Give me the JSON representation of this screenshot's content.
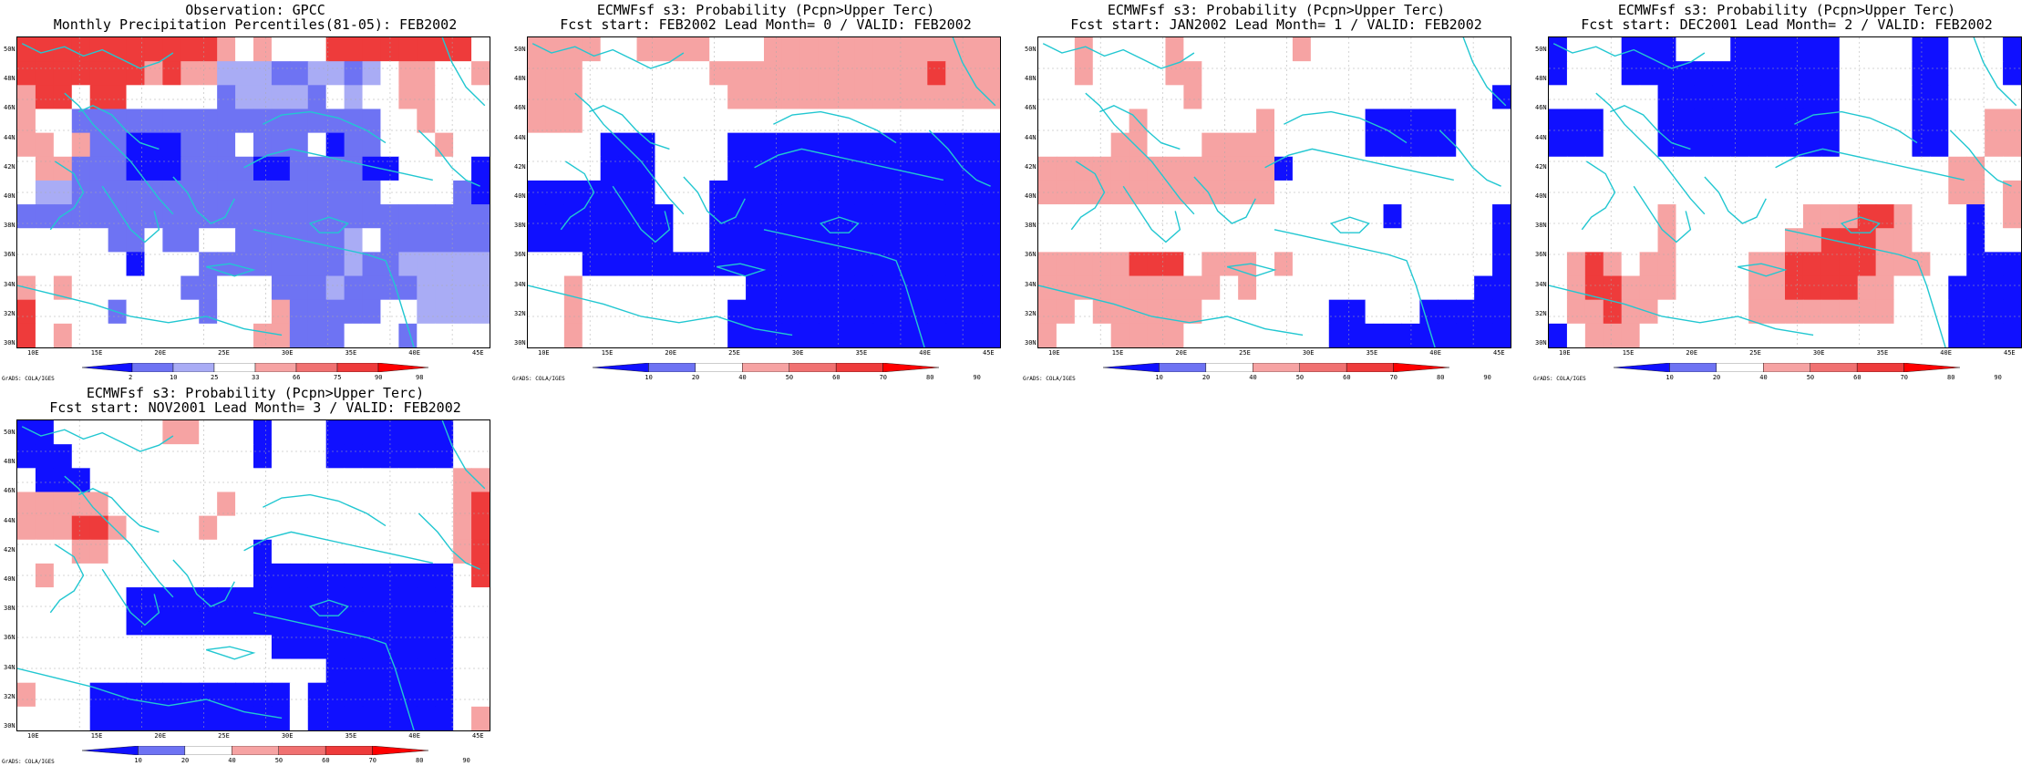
{
  "lat_labels": [
    "50N",
    "48N",
    "46N",
    "44N",
    "42N",
    "40N",
    "38N",
    "36N",
    "34N",
    "32N",
    "30N"
  ],
  "lon_labels": [
    "10E",
    "15E",
    "20E",
    "25E",
    "30E",
    "35E",
    "40E",
    "45E"
  ],
  "credit": "GrADS: COLA/IGES",
  "colors": {
    "blue_dark": "#1010ff",
    "blue_mid": "#6e73f3",
    "blue_light": "#a9acf5",
    "white": "#ffffff",
    "pink_light": "#f6a3a3",
    "pink": "#f07171",
    "red": "#ee3b3b",
    "red_dark": "#ff0000",
    "coast": "#22c7d1"
  },
  "panels": [
    {
      "title1": "Observation: GPCC",
      "title2": "Monthly Precipitation Percentiles(81-05): FEB2002",
      "colorbar_labels": [
        "2",
        "10",
        "25",
        "33",
        "66",
        "75",
        "90",
        "98"
      ],
      "legend_colors": [
        "blue_dark",
        "blue_mid",
        "blue_light",
        "white",
        "pink_light",
        "pink",
        "red",
        "red_dark"
      ],
      "grid": [
        "RRRRRRRRRRRPWPWWWRRRRRRRRW",
        "RRRRRRRPRPPLLLMMLLMLWPPWWP",
        "PRRWRRWWWWWMLLLLMWLWWPPWWW",
        "PWWMMMMMMMMMMMMMMMMMWWPWWW",
        "PPWPMMBBBMMMWMMMWBMMWWWPWW",
        "WPPMMMBBBMMMMBBMMMMBBWWWWB",
        "WLLMMMMMMMMMMMMMMMMMWWWWMB",
        "MMMMMMMMMMMMMMMMMMMMMMMMMM",
        "WWWWWMMWMMWWMMMMMMLWMMMMMM",
        "WWWWWWBWWWMMMMMMMMLMMLLLLL",
        "PWPWWWWWWMMWWWMMMLMMMMLLLL",
        "RWWWWMWWWWMWWWPMMMMMWWLLLL",
        "RWPWWWWWWWWWWPPMMMWWWMWWWW"
      ],
      "coast_color": "coast"
    },
    {
      "title1": "ECMWFsf s3: Probability (Pcpn>Upper Terc)",
      "title2": "Fcst start: FEB2002   Lead Month= 0 / VALID: FEB2002",
      "colorbar_labels": [
        "10",
        "20",
        "40",
        "50",
        "60",
        "70",
        "80",
        "90"
      ],
      "legend_colors": [
        "blue_dark",
        "blue_mid",
        "white",
        "pink_light",
        "pink",
        "red",
        "red_dark"
      ],
      "grid": [
        "PPPPWWPPPPWWWPPPPPPPPPPPPP",
        "PPPWWWWWWWPPPPPPPPPPPPRPPP",
        "PPPWWWWWWWWPPPPPPPPPPPPPPP",
        "PPPWWWWWWWWWWWWWWWWWWWWWWW",
        "WWWWBBBWWWWBBBBBBBBBBBBBBB",
        "WWWWBBBWWWWBBBBBBBBBBBBBBB",
        "BBBBBBBWWWBBBBBBBBBBBBBBBB",
        "BBBBBBBBWWBBBBBBBBBBBBBBBB",
        "BBBBBBBBWWBBBBBBBBBBBBBBBB",
        "WWWBBBBBBBBBBBBBBBBBBBBBBB",
        "WWPWWWWWWWWWBBBBBBBBBBBBBB",
        "WWPWWWWWWWWBBBBBBBBBBBBBBB",
        "WWPWWWWWWWWBBBBBBBBBBBBBBB"
      ],
      "coast_color": "coast"
    },
    {
      "title1": "ECMWFsf s3: Probability (Pcpn>Upper Terc)",
      "title2": "Fcst start: JAN2002   Lead Month= 1 / VALID: FEB2002",
      "colorbar_labels": [
        "10",
        "20",
        "40",
        "50",
        "60",
        "70",
        "80",
        "90"
      ],
      "legend_colors": [
        "blue_dark",
        "blue_mid",
        "white",
        "pink_light",
        "pink",
        "red",
        "red_dark"
      ],
      "grid": [
        "WWPWWWWPWWWWWWPWWWWWWWWWWW",
        "WWPWWWWPPWWWWWWWWWWWWWWWWW",
        "WWWWWWWWPWWWWWWWWWWWWWWWWB",
        "WWWWWPWWWWWWPWWWWWBBBBBWWW",
        "WWWWPPWWWPPPPWWWWWBBBBBWWW",
        "PPPPPPPPPPPPPBWWWWWWWWWWWW",
        "PPPPPPPPPPPPPWWWWWWWWWWWWW",
        "WWWWWWWWWWWWWWWWWWWBWWWWWB",
        "WWWWWWWWWWWWWWWWWWWWWWWWWB",
        "PPPPPRRRWPPPWPWWWWWWWWWWWB",
        "PPPPPPPPPPWPWWWWWWWWWWWWBB",
        "PPWPPPPPPWWWWWWWBBWWWBBBBB",
        "PWWWPPPPWWWWWWWWBBBBBBBBBB"
      ],
      "coast_color": "coast"
    },
    {
      "title1": "ECMWFsf s3: Probability (Pcpn>Upper Terc)",
      "title2": "Fcst start: DEC2001   Lead Month= 2 / VALID: FEB2002",
      "colorbar_labels": [
        "10",
        "20",
        "40",
        "50",
        "60",
        "70",
        "80",
        "90"
      ],
      "legend_colors": [
        "blue_dark",
        "blue_mid",
        "white",
        "pink_light",
        "pink",
        "red",
        "red_dark"
      ],
      "grid": [
        "BWWWBBBWWWBBBBBBWWWWBBWWWB",
        "BWWWBBBBBBBBBBBBWWWWBBWWWB",
        "WWWWWWBBBBBBBBBBWWWWBBWWWW",
        "BBBWWWBBBBBBBBBBWWWWBBWWPP",
        "BBBWWWBBBBBBBBBBWWWWBBWWPP",
        "WWWWWWWWWWWWWWWWWWWWWWPPWW",
        "WWWWWWWWWWWWWWWWWWWWWWPPWP",
        "WWWWWWPWWWWWWWPPPRRPWWWBWP",
        "WWWWWWPWWWWWWPPRRRPPWWWBWW",
        "WPRPWPPWWWWPPRRRRRPPPWWBBB",
        "WPRRPPPWWWWPPRRRRPPWWWBBBB",
        "WPPRPPWWWWWPPPPPPPPWWWBBBB",
        "BWPPPWWWWWWWWWWWWWWWWWBBBB"
      ],
      "coast_color": "coast"
    },
    {
      "title1": "ECMWFsf s3: Probability (Pcpn>Upper Terc)",
      "title2": "Fcst start: NOV2001   Lead Month= 3 / VALID: FEB2002",
      "colorbar_labels": [
        "10",
        "20",
        "40",
        "50",
        "60",
        "70",
        "80",
        "90"
      ],
      "legend_colors": [
        "blue_dark",
        "blue_mid",
        "white",
        "pink_light",
        "pink",
        "red",
        "red_dark"
      ],
      "grid": [
        "BBWWWWWWPPWWWBWWWBBBBBBBWW",
        "BBBWWWWWWWWWWBWWWBBBBBBBWW",
        "WBBBWWWWWWWWWWWWWWWWWWWWPP",
        "PPPPPWWWWWWPWWWWWWWWWWWWPR",
        "PPPRRPWWWWPWWWWWWWWWWWWWPR",
        "WWWPPWWWWWWWWBWWWWWWWWWWPR",
        "WPWWWWWWWWWWWBBBBBBBBBBBWR",
        "WWWWWWBBBBBBBBBBBBBBBBBBWW",
        "WWWWWWBBBBBBBBBBBBBBBBBBWW",
        "WWWWWWWWWWWWWWBBBBBBBBBBWW",
        "WWWWWWWWWWWWWWWWWBBBBBBBWW",
        "PWWWBBBBBBBBBBBWBBBBBBBBWW",
        "WWWWBBBBBBBBBBBWBBBBBBBBWP"
      ],
      "coast_color": "coast"
    }
  ]
}
